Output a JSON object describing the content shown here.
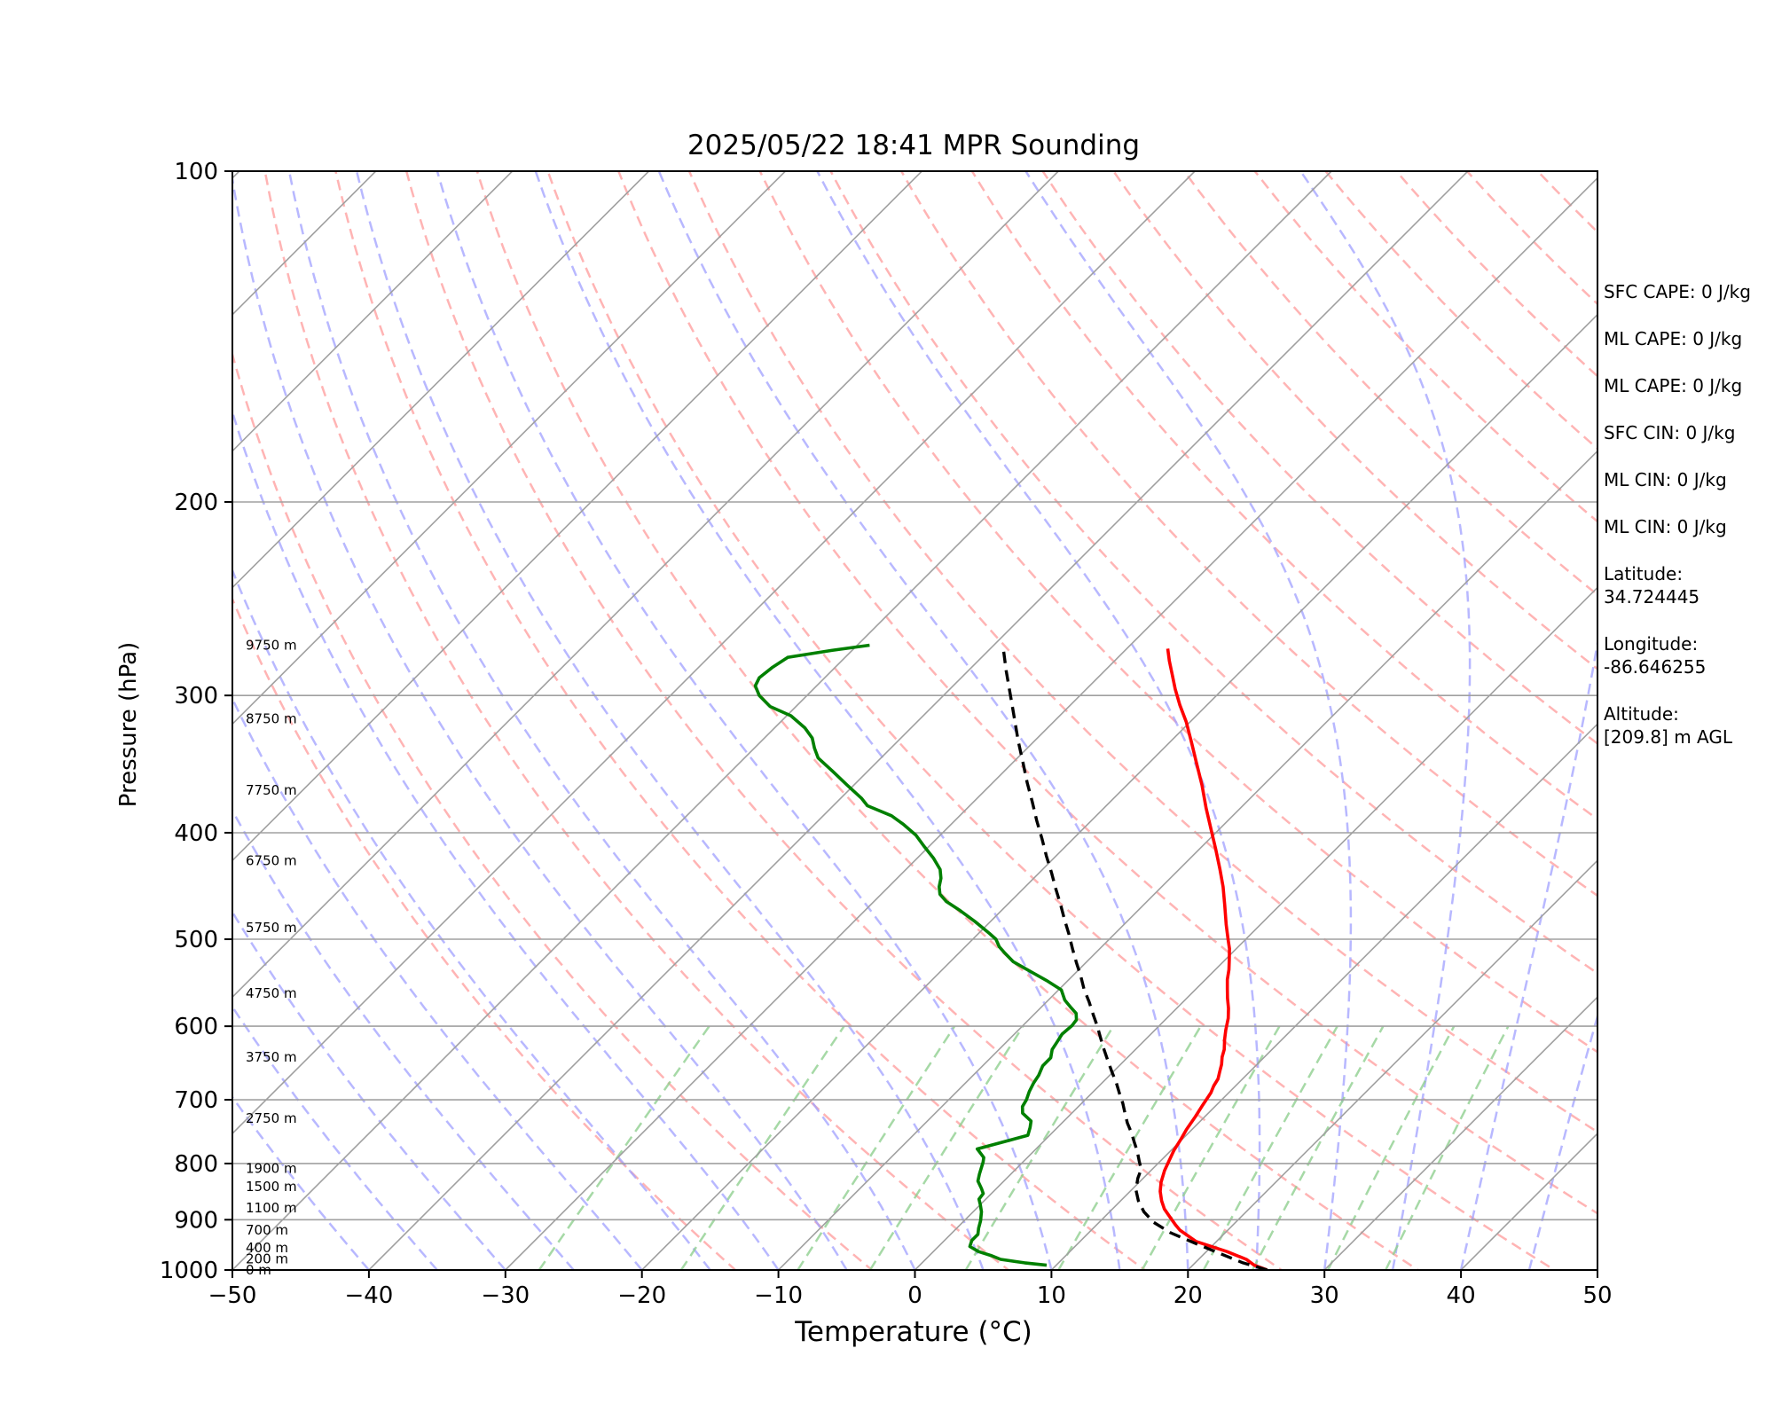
{
  "chart_data": {
    "type": "line",
    "title": "2025/05/22 18:41 MPR Sounding",
    "xlabel": "Temperature (°C)",
    "ylabel": "Pressure (hPa)",
    "xlim": [
      -50,
      50
    ],
    "ylim": [
      1000,
      100
    ],
    "y_scale": "log",
    "skew_degrees": 45,
    "grid": true,
    "x_ticks": [
      "−50",
      "−40",
      "−30",
      "−20",
      "−10",
      "0",
      "10",
      "20",
      "30",
      "40",
      "50"
    ],
    "y_ticks": [
      "1000",
      "900",
      "800",
      "700",
      "600",
      "500",
      "400",
      "300",
      "200",
      "100"
    ],
    "height_labels": [
      {
        "p": 1000,
        "label": "0 m"
      },
      {
        "p": 977,
        "label": "200 m"
      },
      {
        "p": 955,
        "label": "400 m"
      },
      {
        "p": 920,
        "label": "700 m"
      },
      {
        "p": 878,
        "label": "1100 m"
      },
      {
        "p": 840,
        "label": "1500 m"
      },
      {
        "p": 808,
        "label": "1900 m"
      },
      {
        "p": 728,
        "label": "2750 m"
      },
      {
        "p": 640,
        "label": "3750 m"
      },
      {
        "p": 560,
        "label": "4750 m"
      },
      {
        "p": 488,
        "label": "5750 m"
      },
      {
        "p": 424,
        "label": "6750 m"
      },
      {
        "p": 366,
        "label": "7750 m"
      },
      {
        "p": 315,
        "label": "8750 m"
      },
      {
        "p": 270,
        "label": "9750 m"
      }
    ],
    "series": [
      {
        "role": "temperature",
        "color": "#ff0000",
        "points": [
          [
            25.8,
            1000
          ],
          [
            24.5,
            990
          ],
          [
            23.5,
            978
          ],
          [
            21.5,
            962
          ],
          [
            18.5,
            942
          ],
          [
            16.5,
            920
          ],
          [
            15.8,
            910
          ],
          [
            14.8,
            895
          ],
          [
            13.8,
            880
          ],
          [
            13.0,
            865
          ],
          [
            12.2,
            848
          ],
          [
            11.6,
            832
          ],
          [
            11.0,
            812
          ],
          [
            10.6,
            795
          ],
          [
            10.2,
            778
          ],
          [
            9.9,
            760
          ],
          [
            9.6,
            745
          ],
          [
            9.3,
            725
          ],
          [
            9.0,
            708
          ],
          [
            8.7,
            690
          ],
          [
            8.4,
            680
          ],
          [
            8.2,
            670
          ],
          [
            7.8,
            660
          ],
          [
            7.4,
            650
          ],
          [
            6.9,
            640
          ],
          [
            6.5,
            630
          ],
          [
            5.8,
            617
          ],
          [
            5.2,
            605
          ],
          [
            4.5,
            590
          ],
          [
            3.8,
            578
          ],
          [
            3.0,
            566
          ],
          [
            2.3,
            555
          ],
          [
            1.6,
            544
          ],
          [
            1.0,
            533
          ],
          [
            0.3,
            522
          ],
          [
            -0.5,
            510
          ],
          [
            -1.3,
            500
          ],
          [
            -2.5,
            485
          ],
          [
            -4.0,
            466
          ],
          [
            -5.5,
            448
          ],
          [
            -7.0,
            432
          ],
          [
            -8.8,
            414
          ],
          [
            -10.5,
            398
          ],
          [
            -12.5,
            380
          ],
          [
            -14.5,
            362
          ],
          [
            -16.6,
            345
          ],
          [
            -18.4,
            331
          ],
          [
            -20.3,
            317
          ],
          [
            -22.0,
            306
          ],
          [
            -23.5,
            296
          ],
          [
            -24.8,
            287
          ],
          [
            -26.0,
            279
          ],
          [
            -27.0,
            272
          ]
        ]
      },
      {
        "role": "dewpoint",
        "color": "#008000",
        "points": [
          [
            9.3,
            990
          ],
          [
            7.5,
            985
          ],
          [
            5.5,
            978
          ],
          [
            4.5,
            970
          ],
          [
            3.3,
            962
          ],
          [
            2.3,
            952
          ],
          [
            2.0,
            940
          ],
          [
            2.0,
            928
          ],
          [
            1.6,
            916
          ],
          [
            1.2,
            902
          ],
          [
            0.6,
            885
          ],
          [
            0.0,
            872
          ],
          [
            -0.5,
            862
          ],
          [
            -0.6,
            852
          ],
          [
            -1.1,
            843
          ],
          [
            -1.9,
            830
          ],
          [
            -2.3,
            818
          ],
          [
            -2.6,
            808
          ],
          [
            -2.9,
            798
          ],
          [
            -3.2,
            790
          ],
          [
            -4.3,
            776
          ],
          [
            -1.6,
            754
          ],
          [
            -2.0,
            742
          ],
          [
            -2.4,
            732
          ],
          [
            -3.6,
            720
          ],
          [
            -4.1,
            710
          ],
          [
            -4.3,
            700
          ],
          [
            -4.7,
            688
          ],
          [
            -5.0,
            676
          ],
          [
            -5.2,
            665
          ],
          [
            -5.6,
            652
          ],
          [
            -5.6,
            641
          ],
          [
            -6.1,
            630
          ],
          [
            -6.3,
            620
          ],
          [
            -6.5,
            610
          ],
          [
            -6.4,
            599
          ],
          [
            -6.5,
            592
          ],
          [
            -7.0,
            584
          ],
          [
            -7.8,
            577
          ],
          [
            -8.8,
            568
          ],
          [
            -9.8,
            556
          ],
          [
            -11.6,
            545
          ],
          [
            -13.4,
            535
          ],
          [
            -15.4,
            524
          ],
          [
            -16.6,
            515
          ],
          [
            -17.5,
            508
          ],
          [
            -18.3,
            500
          ],
          [
            -19.2,
            494
          ],
          [
            -21.1,
            482
          ],
          [
            -23.0,
            471
          ],
          [
            -24.7,
            462
          ],
          [
            -25.7,
            455
          ],
          [
            -26.3,
            448
          ],
          [
            -26.8,
            440
          ],
          [
            -27.5,
            432
          ],
          [
            -28.8,
            422
          ],
          [
            -30.3,
            412
          ],
          [
            -31.8,
            402
          ],
          [
            -33.5,
            393
          ],
          [
            -35.0,
            386
          ],
          [
            -37.5,
            378
          ],
          [
            -38.5,
            372
          ],
          [
            -40.5,
            362
          ],
          [
            -42.5,
            352
          ],
          [
            -44.6,
            342
          ],
          [
            -45.6,
            335
          ],
          [
            -46.5,
            328
          ],
          [
            -47.8,
            321
          ],
          [
            -49.7,
            313
          ],
          [
            -51.9,
            307
          ],
          [
            -53.5,
            300
          ],
          [
            -54.5,
            294
          ],
          [
            -54.8,
            289
          ],
          [
            -54.6,
            283
          ],
          [
            -54.2,
            277
          ],
          [
            -51.5,
            273
          ],
          [
            -49.1,
            270
          ]
        ]
      },
      {
        "role": "parcel",
        "color": "#000000",
        "dashed": true,
        "points": [
          [
            25.8,
            1000
          ],
          [
            23.5,
            985
          ],
          [
            21.0,
            965
          ],
          [
            18.5,
            945
          ],
          [
            16.0,
            925
          ],
          [
            14.0,
            905
          ],
          [
            12.5,
            885
          ],
          [
            11.3,
            865
          ],
          [
            10.3,
            845
          ],
          [
            9.6,
            825
          ],
          [
            9.2,
            810
          ],
          [
            8.4,
            795
          ],
          [
            7.6,
            780
          ],
          [
            6.7,
            765
          ],
          [
            5.8,
            750
          ],
          [
            4.8,
            735
          ],
          [
            3.9,
            720
          ],
          [
            3.0,
            705
          ],
          [
            2.0,
            690
          ],
          [
            1.0,
            675
          ],
          [
            -0.1,
            660
          ],
          [
            -1.2,
            645
          ],
          [
            -2.3,
            630
          ],
          [
            -3.4,
            615
          ],
          [
            -4.5,
            600
          ],
          [
            -5.7,
            585
          ],
          [
            -6.9,
            570
          ],
          [
            -8.2,
            555
          ],
          [
            -9.4,
            540
          ],
          [
            -10.7,
            525
          ],
          [
            -12.0,
            510
          ],
          [
            -13.3,
            495
          ],
          [
            -14.7,
            480
          ],
          [
            -16.1,
            465
          ],
          [
            -17.6,
            450
          ],
          [
            -19.1,
            435
          ],
          [
            -20.7,
            420
          ],
          [
            -22.3,
            405
          ],
          [
            -24.0,
            390
          ],
          [
            -25.7,
            375
          ],
          [
            -27.5,
            360
          ],
          [
            -29.3,
            345
          ],
          [
            -31.2,
            330
          ],
          [
            -33.1,
            315
          ],
          [
            -35.1,
            300
          ],
          [
            -37.2,
            285
          ],
          [
            -38.9,
            273
          ]
        ]
      }
    ],
    "background_lines": [
      {
        "name": "isotherms",
        "color": "#a0a0a0",
        "style": "solid"
      },
      {
        "name": "dry adiabats",
        "color": "#ff9b9b",
        "style": "dashed"
      },
      {
        "name": "moist adiabats",
        "color": "#a0a0ff",
        "style": "dashed"
      },
      {
        "name": "mixing ratio lines",
        "color": "#90d090",
        "style": "dashed"
      }
    ]
  },
  "stats": [
    {
      "label": "SFC CAPE: 0 J/kg"
    },
    {
      "label": "ML CAPE: 0 J/kg"
    },
    {
      "label": "ML CAPE: 0 J/kg"
    },
    {
      "label": "SFC CIN: 0 J/kg"
    },
    {
      "label": "ML CIN: 0 J/kg"
    },
    {
      "label": "ML CIN: 0 J/kg"
    },
    {
      "label": "Latitude:",
      "value": "34.724445"
    },
    {
      "label": "Longitude:",
      "value": "-86.646255"
    },
    {
      "label": "Altitude:",
      "value": "[209.8] m AGL"
    }
  ]
}
